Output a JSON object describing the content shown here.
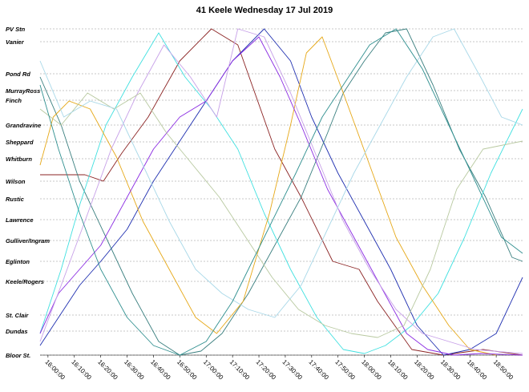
{
  "chart_data": {
    "type": "line",
    "title": "41 Keele Wednesday 17 Jul 2019",
    "xlabel": "",
    "ylabel": "",
    "x_range": [
      "15:57:00",
      "19:00:00"
    ],
    "x_ticks": [
      "16:00:00",
      "16:10:00",
      "16:20:00",
      "16:30:00",
      "16:40:00",
      "16:50:00",
      "17:00:00",
      "17:10:00",
      "17:20:00",
      "17:30:00",
      "17:40:00",
      "17:50:00",
      "18:00:00",
      "18:10:00",
      "18:20:00",
      "18:30:00",
      "18:40:00",
      "18:50:00"
    ],
    "stops": [
      {
        "name": "PV Stn",
        "pos": 0
      },
      {
        "name": "Vanier",
        "pos": 16
      },
      {
        "name": "Pond Rd",
        "pos": 56
      },
      {
        "name": "MurrayRoss",
        "pos": 77
      },
      {
        "name": "Finch",
        "pos": 89
      },
      {
        "name": "Grandravine",
        "pos": 120
      },
      {
        "name": "Sheppard",
        "pos": 141
      },
      {
        "name": "Whitburn",
        "pos": 162
      },
      {
        "name": "Wilson",
        "pos": 190
      },
      {
        "name": "Rustic",
        "pos": 212
      },
      {
        "name": "Lawrence",
        "pos": 238
      },
      {
        "name": "Gulliver/Ingram",
        "pos": 264
      },
      {
        "name": "Eglinton",
        "pos": 290
      },
      {
        "name": "Keele/Rogers",
        "pos": 315
      },
      {
        "name": "St. Clair",
        "pos": 357
      },
      {
        "name": "Dundas",
        "pos": 377
      },
      {
        "name": "Bloor St.",
        "pos": 407
      }
    ],
    "grid": true,
    "legend": "none",
    "series": [
      {
        "color": "#8b2323",
        "points": [
          [
            "15:57:00",
            182
          ],
          [
            "16:14:00",
            182
          ],
          [
            "16:21:00",
            190
          ],
          [
            "16:28:00",
            155
          ],
          [
            "16:38:00",
            110
          ],
          [
            "16:50:00",
            40
          ],
          [
            "17:02:00",
            0
          ],
          [
            "17:12:00",
            20
          ],
          [
            "17:26:00",
            150
          ],
          [
            "17:36:00",
            210
          ],
          [
            "17:48:00",
            290
          ],
          [
            "17:58:00",
            300
          ],
          [
            "18:05:00",
            340
          ],
          [
            "18:18:00",
            400
          ],
          [
            "18:30:00",
            407
          ],
          [
            "18:45:00",
            400
          ],
          [
            "19:00:00",
            407
          ]
        ]
      },
      {
        "color": "#1f2fb0",
        "points": [
          [
            "15:57:00",
            395
          ],
          [
            "16:05:00",
            355
          ],
          [
            "16:12:00",
            320
          ],
          [
            "16:20:00",
            290
          ],
          [
            "16:30:00",
            250
          ],
          [
            "16:40:00",
            190
          ],
          [
            "16:52:00",
            130
          ],
          [
            "17:02:00",
            80
          ],
          [
            "17:10:00",
            40
          ],
          [
            "17:22:00",
            0
          ],
          [
            "17:32:00",
            40
          ],
          [
            "17:40:00",
            110
          ],
          [
            "17:50:00",
            180
          ],
          [
            "18:00:00",
            240
          ],
          [
            "18:10:00",
            300
          ],
          [
            "18:20:00",
            370
          ],
          [
            "18:30:00",
            407
          ],
          [
            "18:40:00",
            400
          ],
          [
            "18:50:00",
            380
          ],
          [
            "19:00:00",
            310
          ]
        ]
      },
      {
        "color": "#3a7f7f",
        "points": [
          [
            "15:57:00",
            60
          ],
          [
            "16:05:00",
            120
          ],
          [
            "16:12:00",
            190
          ],
          [
            "16:22:00",
            260
          ],
          [
            "16:32:00",
            330
          ],
          [
            "16:42:00",
            390
          ],
          [
            "16:50:00",
            407
          ],
          [
            "16:58:00",
            402
          ],
          [
            "17:06:00",
            380
          ],
          [
            "17:16:00",
            330
          ],
          [
            "17:26:00",
            270
          ],
          [
            "17:36:00",
            210
          ],
          [
            "17:46:00",
            130
          ],
          [
            "17:52:00",
            80
          ],
          [
            "18:00:00",
            40
          ],
          [
            "18:08:00",
            5
          ],
          [
            "18:16:00",
            0
          ],
          [
            "18:26:00",
            70
          ],
          [
            "18:36:00",
            150
          ],
          [
            "18:46:00",
            210
          ],
          [
            "18:56:00",
            285
          ],
          [
            "19:00:00",
            290
          ]
        ]
      },
      {
        "color": "#40e0e0",
        "points": [
          [
            "15:57:00",
            380
          ],
          [
            "16:05:00",
            300
          ],
          [
            "16:12:00",
            220
          ],
          [
            "16:22:00",
            120
          ],
          [
            "16:32:00",
            60
          ],
          [
            "16:42:00",
            5
          ],
          [
            "16:52:00",
            60
          ],
          [
            "17:02:00",
            100
          ],
          [
            "17:12:00",
            150
          ],
          [
            "17:22:00",
            230
          ],
          [
            "17:32:00",
            300
          ],
          [
            "17:42:00",
            360
          ],
          [
            "17:52:00",
            400
          ],
          [
            "18:00:00",
            405
          ],
          [
            "18:08:00",
            395
          ],
          [
            "18:18:00",
            370
          ],
          [
            "18:28:00",
            330
          ],
          [
            "18:38:00",
            260
          ],
          [
            "18:48:00",
            180
          ],
          [
            "19:00:00",
            100
          ]
        ]
      },
      {
        "color": "#e6a817",
        "points": [
          [
            "15:57:00",
            170
          ],
          [
            "16:02:00",
            110
          ],
          [
            "16:08:00",
            90
          ],
          [
            "16:16:00",
            100
          ],
          [
            "16:26:00",
            160
          ],
          [
            "16:36:00",
            240
          ],
          [
            "16:46:00",
            300
          ],
          [
            "16:56:00",
            360
          ],
          [
            "17:04:00",
            380
          ],
          [
            "17:14:00",
            340
          ],
          [
            "17:24:00",
            230
          ],
          [
            "17:32:00",
            120
          ],
          [
            "17:38:00",
            30
          ],
          [
            "17:44:00",
            10
          ],
          [
            "17:52:00",
            80
          ],
          [
            "18:02:00",
            170
          ],
          [
            "18:12:00",
            260
          ],
          [
            "18:22:00",
            320
          ],
          [
            "18:32:00",
            370
          ],
          [
            "18:40:00",
            400
          ],
          [
            "18:50:00",
            407
          ]
        ]
      },
      {
        "color": "#8a2be2",
        "points": [
          [
            "15:57:00",
            380
          ],
          [
            "16:04:00",
            330
          ],
          [
            "16:12:00",
            300
          ],
          [
            "16:20:00",
            270
          ],
          [
            "16:30:00",
            210
          ],
          [
            "16:40:00",
            150
          ],
          [
            "16:50:00",
            110
          ],
          [
            "17:00:00",
            90
          ],
          [
            "17:10:00",
            40
          ],
          [
            "17:20:00",
            10
          ],
          [
            "17:28:00",
            60
          ],
          [
            "17:36:00",
            120
          ],
          [
            "17:46:00",
            200
          ],
          [
            "17:56:00",
            260
          ],
          [
            "18:06:00",
            320
          ],
          [
            "18:16:00",
            380
          ],
          [
            "18:24:00",
            400
          ],
          [
            "18:34:00",
            407
          ],
          [
            "18:44:00",
            405
          ],
          [
            "19:00:00",
            407
          ]
        ]
      },
      {
        "color": "#c7a0e8",
        "points": [
          [
            "15:57:00",
            390
          ],
          [
            "16:05:00",
            320
          ],
          [
            "16:14:00",
            240
          ],
          [
            "16:24:00",
            150
          ],
          [
            "16:34:00",
            80
          ],
          [
            "16:44:00",
            20
          ],
          [
            "16:54:00",
            60
          ],
          [
            "17:04:00",
            110
          ],
          [
            "17:12:00",
            0
          ],
          [
            "17:22:00",
            10
          ],
          [
            "17:32:00",
            80
          ],
          [
            "17:42:00",
            160
          ],
          [
            "17:52:00",
            240
          ],
          [
            "18:02:00",
            300
          ],
          [
            "18:12:00",
            350
          ],
          [
            "18:22:00",
            380
          ],
          [
            "18:32:00",
            390
          ],
          [
            "18:42:00",
            400
          ],
          [
            "19:00:00",
            405
          ]
        ]
      },
      {
        "color": "#b8c9a0",
        "points": [
          [
            "15:57:00",
            100
          ],
          [
            "16:05:00",
            120
          ],
          [
            "16:15:00",
            80
          ],
          [
            "16:25:00",
            100
          ],
          [
            "16:35:00",
            80
          ],
          [
            "16:45:00",
            130
          ],
          [
            "16:55:00",
            170
          ],
          [
            "17:05:00",
            210
          ],
          [
            "17:15:00",
            260
          ],
          [
            "17:25:00",
            310
          ],
          [
            "17:35:00",
            350
          ],
          [
            "17:45:00",
            370
          ],
          [
            "17:55:00",
            380
          ],
          [
            "18:05:00",
            385
          ],
          [
            "18:15:00",
            370
          ],
          [
            "18:25:00",
            300
          ],
          [
            "18:35:00",
            200
          ],
          [
            "18:45:00",
            150
          ],
          [
            "19:00:00",
            140
          ]
        ]
      },
      {
        "color": "#a8d8e8",
        "points": [
          [
            "15:57:00",
            40
          ],
          [
            "16:06:00",
            110
          ],
          [
            "16:16:00",
            90
          ],
          [
            "16:26:00",
            100
          ],
          [
            "16:36:00",
            170
          ],
          [
            "16:46:00",
            240
          ],
          [
            "16:56:00",
            300
          ],
          [
            "17:06:00",
            330
          ],
          [
            "17:16:00",
            350
          ],
          [
            "17:26:00",
            360
          ],
          [
            "17:36:00",
            320
          ],
          [
            "17:46:00",
            250
          ],
          [
            "17:56:00",
            180
          ],
          [
            "18:06:00",
            120
          ],
          [
            "18:16:00",
            60
          ],
          [
            "18:26:00",
            10
          ],
          [
            "18:34:00",
            0
          ],
          [
            "18:44:00",
            60
          ],
          [
            "18:52:00",
            110
          ],
          [
            "19:00:00",
            120
          ]
        ]
      },
      {
        "color": "#2f8f8f",
        "points": [
          [
            "15:57:00",
            70
          ],
          [
            "16:04:00",
            150
          ],
          [
            "16:12:00",
            230
          ],
          [
            "16:20:00",
            300
          ],
          [
            "16:30:00",
            360
          ],
          [
            "16:40:00",
            395
          ],
          [
            "16:50:00",
            407
          ],
          [
            "17:00:00",
            390
          ],
          [
            "17:10:00",
            340
          ],
          [
            "17:22:00",
            260
          ],
          [
            "17:34:00",
            180
          ],
          [
            "17:44:00",
            110
          ],
          [
            "17:52:00",
            70
          ],
          [
            "18:02:00",
            20
          ],
          [
            "18:12:00",
            0
          ],
          [
            "18:22:00",
            50
          ],
          [
            "18:32:00",
            120
          ],
          [
            "18:42:00",
            190
          ],
          [
            "18:52:00",
            260
          ],
          [
            "19:00:00",
            280
          ]
        ]
      }
    ]
  }
}
